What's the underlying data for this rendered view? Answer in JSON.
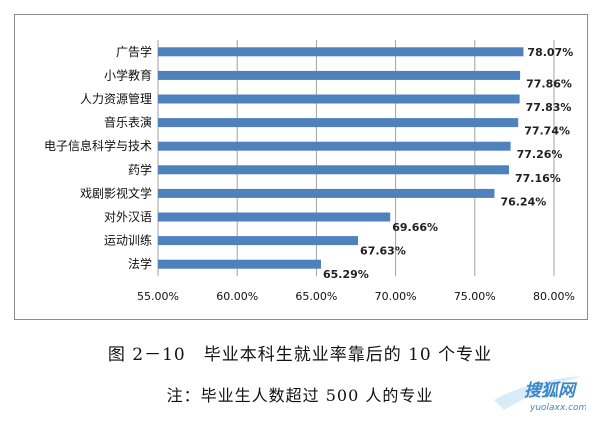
{
  "chart_data": {
    "type": "bar",
    "orientation": "horizontal",
    "categories": [
      "广告学",
      "小学教育",
      "人力资源管理",
      "音乐表演",
      "电子信息科学与技术",
      "药学",
      "戏剧影视文学",
      "对外汉语",
      "运动训练",
      "法学"
    ],
    "values": [
      78.07,
      77.86,
      77.83,
      77.74,
      77.26,
      77.16,
      76.24,
      69.66,
      67.63,
      65.29
    ],
    "value_labels": [
      "78.07%",
      "77.86%",
      "77.83%",
      "77.74%",
      "77.26%",
      "77.16%",
      "76.24%",
      "69.66%",
      "67.63%",
      "65.29%"
    ],
    "x_ticks": [
      55,
      60,
      65,
      70,
      75,
      80
    ],
    "x_tick_labels": [
      "55.00%",
      "60.00%",
      "65.00%",
      "70.00%",
      "75.00%",
      "80.00%"
    ],
    "xlim": [
      55,
      80
    ],
    "grid": true,
    "legend": false,
    "bar_color": "#4f81bd",
    "grid_color": "#a0a0a0"
  },
  "caption": {
    "figure_title": "图 2－10　毕业本科生就业率靠后的 10 个专业",
    "note": "注：毕业生人数超过 500 人的专业"
  },
  "watermark": {
    "text": "搜狐网",
    "url": "yuolaxx.com",
    "color": "#3a88c8"
  }
}
